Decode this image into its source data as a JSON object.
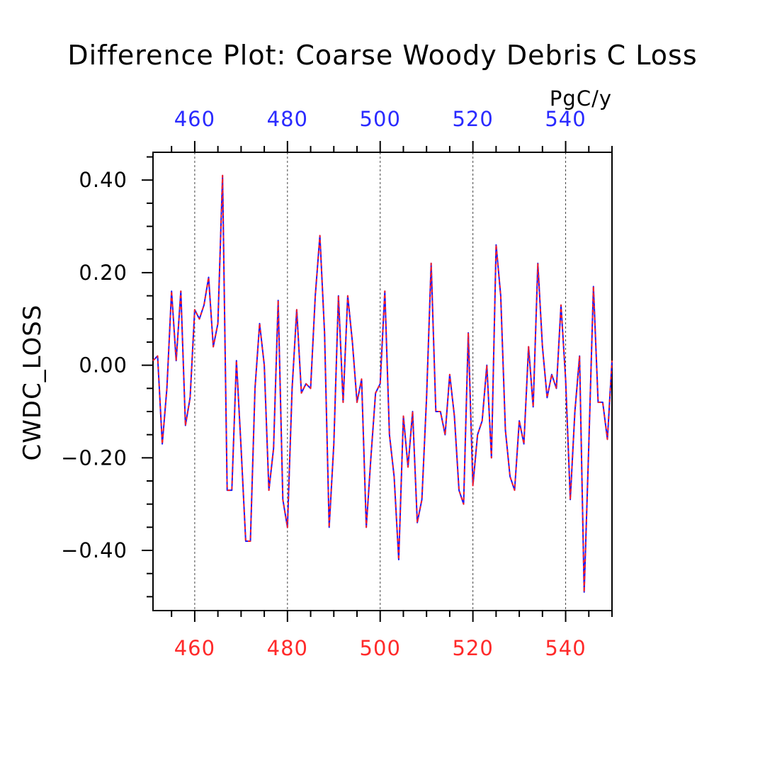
{
  "chart_data": {
    "type": "line",
    "title": "Difference Plot: Coarse Woody Debris C Loss",
    "ylabel": "CWDC_LOSS",
    "units": "PgC/y",
    "xlim": [
      451,
      550
    ],
    "ylim": [
      -0.53,
      0.46
    ],
    "grid": "vertical dashed lines at major x ticks",
    "bottom_axis": {
      "ticks": [
        460,
        480,
        500,
        520,
        540
      ],
      "labels": [
        "460",
        "480",
        "500",
        "520",
        "540"
      ],
      "color": "#ff2a2a"
    },
    "top_axis": {
      "ticks": [
        460,
        480,
        500,
        520,
        540
      ],
      "labels": [
        "460",
        "480",
        "500",
        "520",
        "540"
      ],
      "color": "#2a2aff"
    },
    "left_axis": {
      "ticks": [
        -0.4,
        -0.2,
        0.0,
        0.2,
        0.4
      ],
      "labels": [
        "−0.40",
        "−0.20",
        "0.00",
        "0.20",
        "0.40"
      ]
    },
    "x": [
      451,
      452,
      453,
      454,
      455,
      456,
      457,
      458,
      459,
      460,
      461,
      462,
      463,
      464,
      465,
      466,
      467,
      468,
      469,
      470,
      471,
      472,
      473,
      474,
      475,
      476,
      477,
      478,
      479,
      480,
      481,
      482,
      483,
      484,
      485,
      486,
      487,
      488,
      489,
      490,
      491,
      492,
      493,
      494,
      495,
      496,
      497,
      498,
      499,
      500,
      501,
      502,
      503,
      504,
      505,
      506,
      507,
      508,
      509,
      510,
      511,
      512,
      513,
      514,
      515,
      516,
      517,
      518,
      519,
      520,
      521,
      522,
      523,
      524,
      525,
      526,
      527,
      528,
      529,
      530,
      531,
      532,
      533,
      534,
      535,
      536,
      537,
      538,
      539,
      540,
      541,
      542,
      543,
      544,
      545,
      546,
      547,
      548,
      549,
      550
    ],
    "series": [
      {
        "color_line": "#1a1aff",
        "color_dash": "#ff2020",
        "values": [
          0.01,
          0.02,
          -0.17,
          -0.05,
          0.16,
          0.01,
          0.16,
          -0.13,
          -0.07,
          0.12,
          0.1,
          0.13,
          0.19,
          0.04,
          0.09,
          0.41,
          -0.27,
          -0.27,
          0.01,
          -0.18,
          -0.38,
          -0.38,
          -0.05,
          0.09,
          0.0,
          -0.27,
          -0.18,
          0.14,
          -0.29,
          -0.35,
          -0.05,
          0.12,
          -0.06,
          -0.04,
          -0.05,
          0.15,
          0.28,
          0.07,
          -0.35,
          -0.17,
          0.15,
          -0.08,
          0.15,
          0.05,
          -0.08,
          -0.03,
          -0.35,
          -0.2,
          -0.06,
          -0.04,
          0.16,
          -0.15,
          -0.24,
          -0.42,
          -0.11,
          -0.22,
          -0.1,
          -0.34,
          -0.29,
          -0.07,
          0.22,
          -0.1,
          -0.1,
          -0.15,
          -0.02,
          -0.11,
          -0.27,
          -0.3,
          0.07,
          -0.26,
          -0.15,
          -0.12,
          0.0,
          -0.2,
          0.26,
          0.15,
          -0.14,
          -0.24,
          -0.27,
          -0.12,
          -0.17,
          0.04,
          -0.09,
          0.22,
          0.04,
          -0.07,
          -0.02,
          -0.05,
          0.13,
          -0.03,
          -0.29,
          -0.1,
          0.02,
          -0.49,
          -0.17,
          0.17,
          -0.08,
          -0.08,
          -0.16,
          0.01
        ]
      }
    ]
  }
}
